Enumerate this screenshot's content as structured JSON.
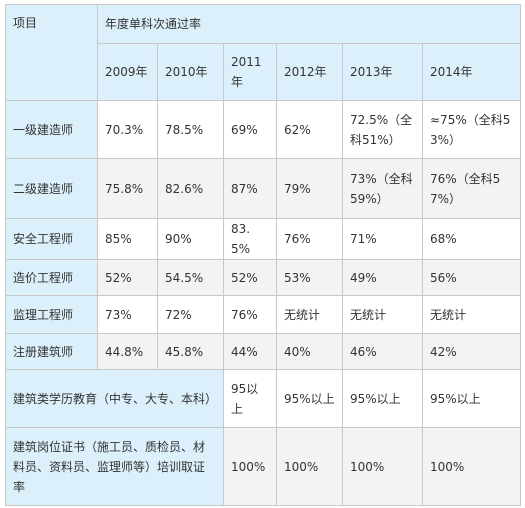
{
  "table": {
    "row_header_label": "项目",
    "group_header": "年度单科次通过率",
    "years": [
      "2009年",
      "2010年",
      "2011年",
      "2012年",
      "2013年",
      "2014年"
    ],
    "rows": [
      {
        "label": "一级建造师",
        "cells": [
          "70.3%",
          "78.5%",
          "69%",
          "62%",
          "72.5%（全科51%）",
          "≈75%（全科53%）"
        ]
      },
      {
        "label": "二级建造师",
        "cells": [
          "75.8%",
          "82.6%",
          "87%",
          "79%",
          "73%（全科59%）",
          "76%（全科57%）"
        ]
      },
      {
        "label": "安全工程师",
        "cells": [
          "85%",
          "90%",
          "83.5%",
          "76%",
          "71%",
          "68%"
        ]
      },
      {
        "label": "造价工程师",
        "cells": [
          "52%",
          "54.5%",
          "52%",
          "53%",
          "49%",
          "56%"
        ]
      },
      {
        "label": "监理工程师",
        "cells": [
          "73%",
          "72%",
          "76%",
          "无统计",
          "无统计",
          "无统计"
        ]
      },
      {
        "label": "注册建筑师",
        "cells": [
          "44.8%",
          "45.8%",
          "44%",
          "40%",
          "46%",
          "42%"
        ]
      }
    ],
    "wide_rows": [
      {
        "label": "建筑类学历教育（中专、大专、本科）",
        "cells": [
          "95以上",
          "95%以上",
          "95%以上",
          "95%以上"
        ]
      },
      {
        "label": "建筑岗位证书（施工员、质检员、材料员、资料员、监理师等）培训取证率",
        "cells": [
          "100%",
          "100%",
          "100%",
          "100%"
        ]
      }
    ]
  }
}
